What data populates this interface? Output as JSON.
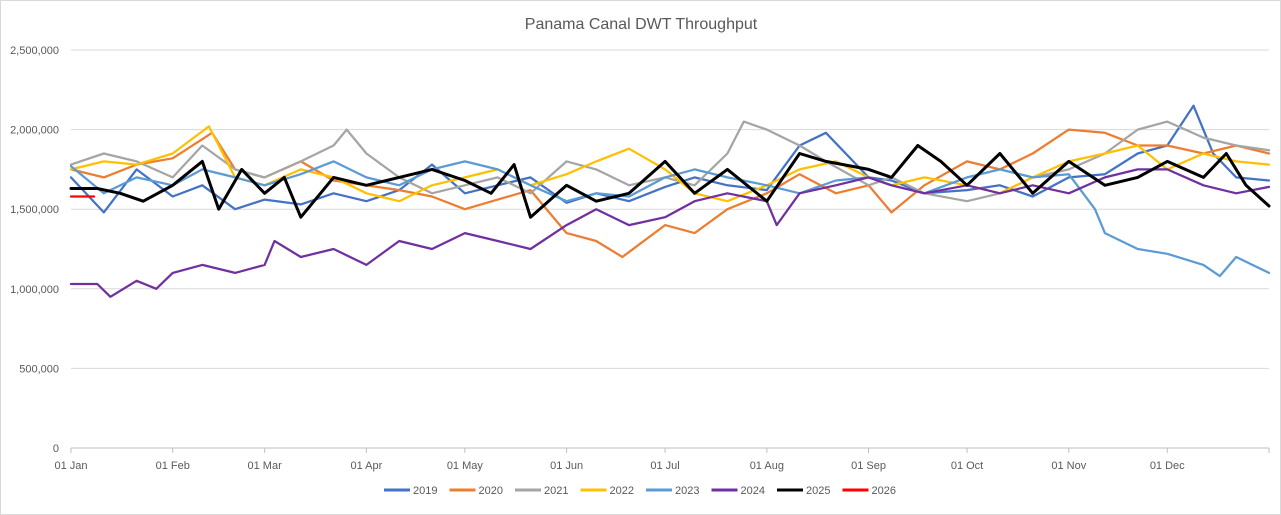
{
  "chart_data": {
    "type": "line",
    "title": "Panama Canal DWT Throughput",
    "xlabel": "",
    "ylabel": "",
    "ylim": [
      0,
      2500000
    ],
    "y_ticks": [
      0,
      500000,
      1000000,
      1500000,
      2000000,
      2500000
    ],
    "y_tick_labels": [
      "0",
      "500,000",
      "1,000,000",
      "1,500,000",
      "2,000,000",
      "2,500,000"
    ],
    "x_tick_labels": [
      "01 Jan",
      "01 Feb",
      "01 Mar",
      "01 Apr",
      "01 May",
      "01 Jun",
      "01 Jul",
      "01 Aug",
      "01 Sep",
      "01 Oct",
      "01 Nov",
      "01 Dec"
    ],
    "x_tick_days": [
      0,
      31,
      59,
      90,
      120,
      151,
      181,
      212,
      243,
      273,
      304,
      334
    ],
    "x_range_days": [
      0,
      365
    ],
    "grid": true,
    "legend_position": "bottom",
    "series": [
      {
        "name": "2019",
        "color": "#4472c4",
        "x": [
          0,
          10,
          20,
          31,
          40,
          50,
          59,
          70,
          80,
          90,
          100,
          110,
          120,
          130,
          140,
          151,
          160,
          170,
          181,
          190,
          200,
          212,
          222,
          230,
          243,
          250,
          260,
          273,
          283,
          293,
          304,
          315,
          325,
          334,
          342,
          348,
          355,
          365
        ],
        "values": [
          1700000,
          1480000,
          1750000,
          1580000,
          1650000,
          1500000,
          1560000,
          1530000,
          1600000,
          1550000,
          1620000,
          1780000,
          1600000,
          1650000,
          1700000,
          1540000,
          1600000,
          1550000,
          1640000,
          1700000,
          1650000,
          1620000,
          1900000,
          1980000,
          1700000,
          1680000,
          1600000,
          1620000,
          1650000,
          1580000,
          1700000,
          1720000,
          1850000,
          1900000,
          2150000,
          1850000,
          1700000,
          1680000
        ]
      },
      {
        "name": "2020",
        "color": "#ed7d31",
        "x": [
          0,
          10,
          20,
          31,
          43,
          50,
          59,
          70,
          80,
          90,
          100,
          110,
          120,
          130,
          140,
          151,
          160,
          168,
          181,
          190,
          200,
          212,
          222,
          233,
          243,
          250,
          260,
          273,
          283,
          293,
          304,
          315,
          325,
          334,
          345,
          355,
          365
        ],
        "values": [
          1750000,
          1700000,
          1780000,
          1820000,
          1980000,
          1750000,
          1700000,
          1800000,
          1680000,
          1650000,
          1620000,
          1580000,
          1500000,
          1560000,
          1620000,
          1350000,
          1300000,
          1200000,
          1400000,
          1350000,
          1500000,
          1600000,
          1720000,
          1600000,
          1650000,
          1480000,
          1650000,
          1800000,
          1750000,
          1850000,
          2000000,
          1980000,
          1900000,
          1900000,
          1850000,
          1900000,
          1850000
        ]
      },
      {
        "name": "2021",
        "color": "#a5a5a5",
        "x": [
          0,
          10,
          20,
          31,
          40,
          50,
          59,
          70,
          80,
          84,
          90,
          100,
          110,
          120,
          130,
          140,
          151,
          160,
          170,
          181,
          190,
          200,
          205,
          212,
          222,
          230,
          243,
          250,
          260,
          273,
          283,
          293,
          304,
          315,
          325,
          334,
          345,
          355,
          365
        ],
        "values": [
          1780000,
          1850000,
          1800000,
          1700000,
          1900000,
          1750000,
          1700000,
          1800000,
          1900000,
          2000000,
          1850000,
          1700000,
          1600000,
          1650000,
          1700000,
          1600000,
          1800000,
          1750000,
          1650000,
          1700000,
          1650000,
          1850000,
          2050000,
          2000000,
          1900000,
          1800000,
          1650000,
          1700000,
          1600000,
          1550000,
          1600000,
          1700000,
          1750000,
          1850000,
          2000000,
          2050000,
          1950000,
          1900000,
          1870000
        ]
      },
      {
        "name": "2022",
        "color": "#ffc000",
        "x": [
          0,
          10,
          20,
          31,
          42,
          50,
          59,
          70,
          80,
          90,
          100,
          110,
          120,
          130,
          140,
          151,
          160,
          170,
          181,
          190,
          200,
          212,
          222,
          233,
          243,
          250,
          260,
          273,
          283,
          293,
          304,
          315,
          325,
          334,
          345,
          355,
          365
        ],
        "values": [
          1750000,
          1800000,
          1780000,
          1850000,
          2020000,
          1700000,
          1650000,
          1750000,
          1700000,
          1600000,
          1550000,
          1650000,
          1700000,
          1750000,
          1650000,
          1720000,
          1800000,
          1880000,
          1750000,
          1600000,
          1550000,
          1650000,
          1750000,
          1800000,
          1700000,
          1650000,
          1700000,
          1650000,
          1600000,
          1700000,
          1800000,
          1850000,
          1900000,
          1750000,
          1850000,
          1800000,
          1780000
        ]
      },
      {
        "name": "2023",
        "color": "#5b9bd5",
        "x": [
          0,
          10,
          20,
          31,
          40,
          50,
          59,
          70,
          80,
          90,
          100,
          110,
          120,
          130,
          140,
          151,
          160,
          170,
          181,
          190,
          200,
          212,
          222,
          233,
          243,
          250,
          260,
          273,
          283,
          293,
          304,
          312,
          315,
          325,
          334,
          345,
          350,
          355,
          365
        ],
        "values": [
          1770000,
          1600000,
          1700000,
          1650000,
          1750000,
          1700000,
          1650000,
          1720000,
          1800000,
          1700000,
          1650000,
          1750000,
          1800000,
          1750000,
          1650000,
          1550000,
          1600000,
          1580000,
          1700000,
          1750000,
          1700000,
          1650000,
          1600000,
          1680000,
          1700000,
          1650000,
          1600000,
          1700000,
          1750000,
          1700000,
          1720000,
          1500000,
          1350000,
          1250000,
          1220000,
          1150000,
          1080000,
          1200000,
          1100000
        ]
      },
      {
        "name": "2024",
        "color": "#7030a0",
        "x": [
          0,
          8,
          12,
          20,
          26,
          31,
          40,
          50,
          59,
          62,
          70,
          80,
          90,
          100,
          110,
          120,
          130,
          140,
          151,
          160,
          170,
          181,
          190,
          200,
          212,
          215,
          222,
          233,
          243,
          250,
          260,
          273,
          283,
          293,
          304,
          315,
          325,
          334,
          345,
          355,
          365
        ],
        "values": [
          1030000,
          1030000,
          950000,
          1050000,
          1000000,
          1100000,
          1150000,
          1100000,
          1150000,
          1300000,
          1200000,
          1250000,
          1150000,
          1300000,
          1250000,
          1350000,
          1300000,
          1250000,
          1400000,
          1500000,
          1400000,
          1450000,
          1550000,
          1600000,
          1550000,
          1400000,
          1600000,
          1650000,
          1700000,
          1650000,
          1600000,
          1650000,
          1600000,
          1650000,
          1600000,
          1700000,
          1750000,
          1750000,
          1650000,
          1600000,
          1640000
        ]
      },
      {
        "name": "2025",
        "color": "#000000",
        "x": [
          0,
          8,
          15,
          22,
          31,
          40,
          45,
          52,
          59,
          65,
          70,
          80,
          90,
          100,
          110,
          120,
          128,
          135,
          140,
          151,
          160,
          170,
          181,
          190,
          200,
          212,
          222,
          230,
          243,
          250,
          258,
          265,
          273,
          283,
          293,
          304,
          315,
          325,
          334,
          345,
          352,
          358,
          365
        ],
        "values": [
          1630000,
          1630000,
          1600000,
          1550000,
          1650000,
          1800000,
          1500000,
          1750000,
          1600000,
          1700000,
          1450000,
          1700000,
          1650000,
          1700000,
          1750000,
          1680000,
          1600000,
          1780000,
          1450000,
          1650000,
          1550000,
          1600000,
          1800000,
          1600000,
          1750000,
          1550000,
          1850000,
          1800000,
          1750000,
          1700000,
          1900000,
          1800000,
          1650000,
          1850000,
          1600000,
          1800000,
          1650000,
          1700000,
          1800000,
          1700000,
          1850000,
          1650000,
          1520000
        ]
      },
      {
        "name": "2026",
        "color": "#ff0000",
        "x": [
          0,
          7
        ],
        "values": [
          1580000,
          1580000
        ]
      }
    ]
  }
}
